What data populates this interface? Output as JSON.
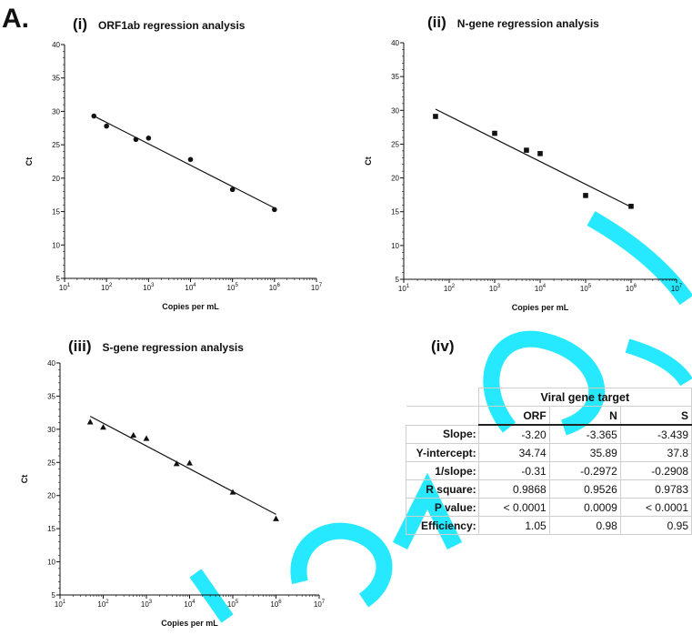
{
  "figure_label": "A.",
  "colors": {
    "watermark": "#00e5ff",
    "line": "#111111",
    "grid_border": "#cfcfcf"
  },
  "panels": [
    {
      "num": "(i)",
      "title": "ORF1ab regression analysis"
    },
    {
      "num": "(ii)",
      "title": "N-gene regression analysis"
    },
    {
      "num": "(iii)",
      "title": "S-gene regression analysis"
    },
    {
      "num": "(iv)",
      "title": ""
    }
  ],
  "chart_data": [
    {
      "type": "scatter",
      "title": "ORF1ab regression analysis",
      "xlabel": "Copies per mL",
      "ylabel": "Ct",
      "x_scale": "log10",
      "xlim": [
        10,
        10000000
      ],
      "ylim": [
        5,
        40
      ],
      "x_ticks": [
        10,
        100,
        1000,
        10000,
        100000,
        1000000,
        10000000
      ],
      "y_ticks": [
        5,
        10,
        15,
        20,
        25,
        30,
        35,
        40
      ],
      "y_tick_labels": [
        "5",
        "10",
        "15",
        "20",
        "25",
        "30",
        "35",
        "40"
      ],
      "marker": "circle",
      "points": [
        {
          "x": 50,
          "y": 29.3
        },
        {
          "x": 100,
          "y": 27.8
        },
        {
          "x": 500,
          "y": 25.8
        },
        {
          "x": 1000,
          "y": 26.0
        },
        {
          "x": 10000,
          "y": 22.8
        },
        {
          "x": 100000,
          "y": 18.3
        },
        {
          "x": 1000000,
          "y": 15.3
        }
      ],
      "fit": {
        "slope": -3.2,
        "intercept": 34.74,
        "x_range": [
          50,
          1000000
        ]
      }
    },
    {
      "type": "scatter",
      "title": "N-gene regression analysis",
      "xlabel": "Copies per mL",
      "ylabel": "Ct",
      "x_scale": "log10",
      "xlim": [
        10,
        10000000
      ],
      "ylim": [
        5,
        40
      ],
      "x_ticks": [
        10,
        100,
        1000,
        10000,
        100000,
        1000000,
        10000000
      ],
      "y_ticks": [
        5,
        10,
        15,
        20,
        25,
        30,
        35,
        40
      ],
      "y_tick_labels": [
        "5",
        "10",
        "15",
        "20",
        "25",
        "30",
        "35",
        "40"
      ],
      "marker": "square",
      "points": [
        {
          "x": 50,
          "y": 29.1
        },
        {
          "x": 1000,
          "y": 26.6
        },
        {
          "x": 5000,
          "y": 24.1
        },
        {
          "x": 10000,
          "y": 23.6
        },
        {
          "x": 100000,
          "y": 17.4
        },
        {
          "x": 1000000,
          "y": 15.8
        }
      ],
      "fit": {
        "slope": -3.365,
        "intercept": 35.89,
        "x_range": [
          50,
          1000000
        ]
      }
    },
    {
      "type": "scatter",
      "title": "S-gene regression analysis",
      "xlabel": "Copies per mL",
      "ylabel": "Ct",
      "x_scale": "log10",
      "xlim": [
        10,
        10000000
      ],
      "ylim": [
        5,
        40
      ],
      "x_ticks": [
        10,
        100,
        1000,
        10000,
        100000,
        1000000,
        10000000
      ],
      "y_ticks": [
        5,
        10,
        15,
        20,
        25,
        30,
        35,
        40
      ],
      "y_tick_labels": [
        "5",
        "10",
        "15",
        "20",
        "25",
        "30",
        "35",
        "40"
      ],
      "marker": "triangle",
      "points": [
        {
          "x": 50,
          "y": 31.1
        },
        {
          "x": 100,
          "y": 30.3
        },
        {
          "x": 500,
          "y": 29.1
        },
        {
          "x": 1000,
          "y": 28.6
        },
        {
          "x": 5000,
          "y": 24.8
        },
        {
          "x": 10000,
          "y": 24.9
        },
        {
          "x": 100000,
          "y": 20.5
        },
        {
          "x": 1000000,
          "y": 16.5
        }
      ],
      "fit": {
        "slope": -3.439,
        "intercept": 37.8,
        "x_range": [
          50,
          1000000
        ]
      }
    },
    {
      "type": "table",
      "super_header": "Viral gene target",
      "columns": [
        "ORF",
        "N",
        "S"
      ],
      "rows": [
        {
          "label": "Slope:",
          "values": [
            "-3.20",
            "-3.365",
            "-3.439"
          ]
        },
        {
          "label": "Y-intercept:",
          "values": [
            "34.74",
            "35.89",
            "37.8"
          ]
        },
        {
          "label": "1/slope:",
          "values": [
            "-0.31",
            "-0.2972",
            "-0.2908"
          ]
        },
        {
          "label": "R square:",
          "values": [
            "0.9868",
            "0.9526",
            "0.9783"
          ]
        },
        {
          "label": "P value:",
          "values": [
            "< 0.0001",
            "0.0009",
            "< 0.0001"
          ]
        },
        {
          "label": "Efficiency:",
          "values": [
            "1.05",
            "0.98",
            "0.95"
          ]
        }
      ]
    }
  ]
}
